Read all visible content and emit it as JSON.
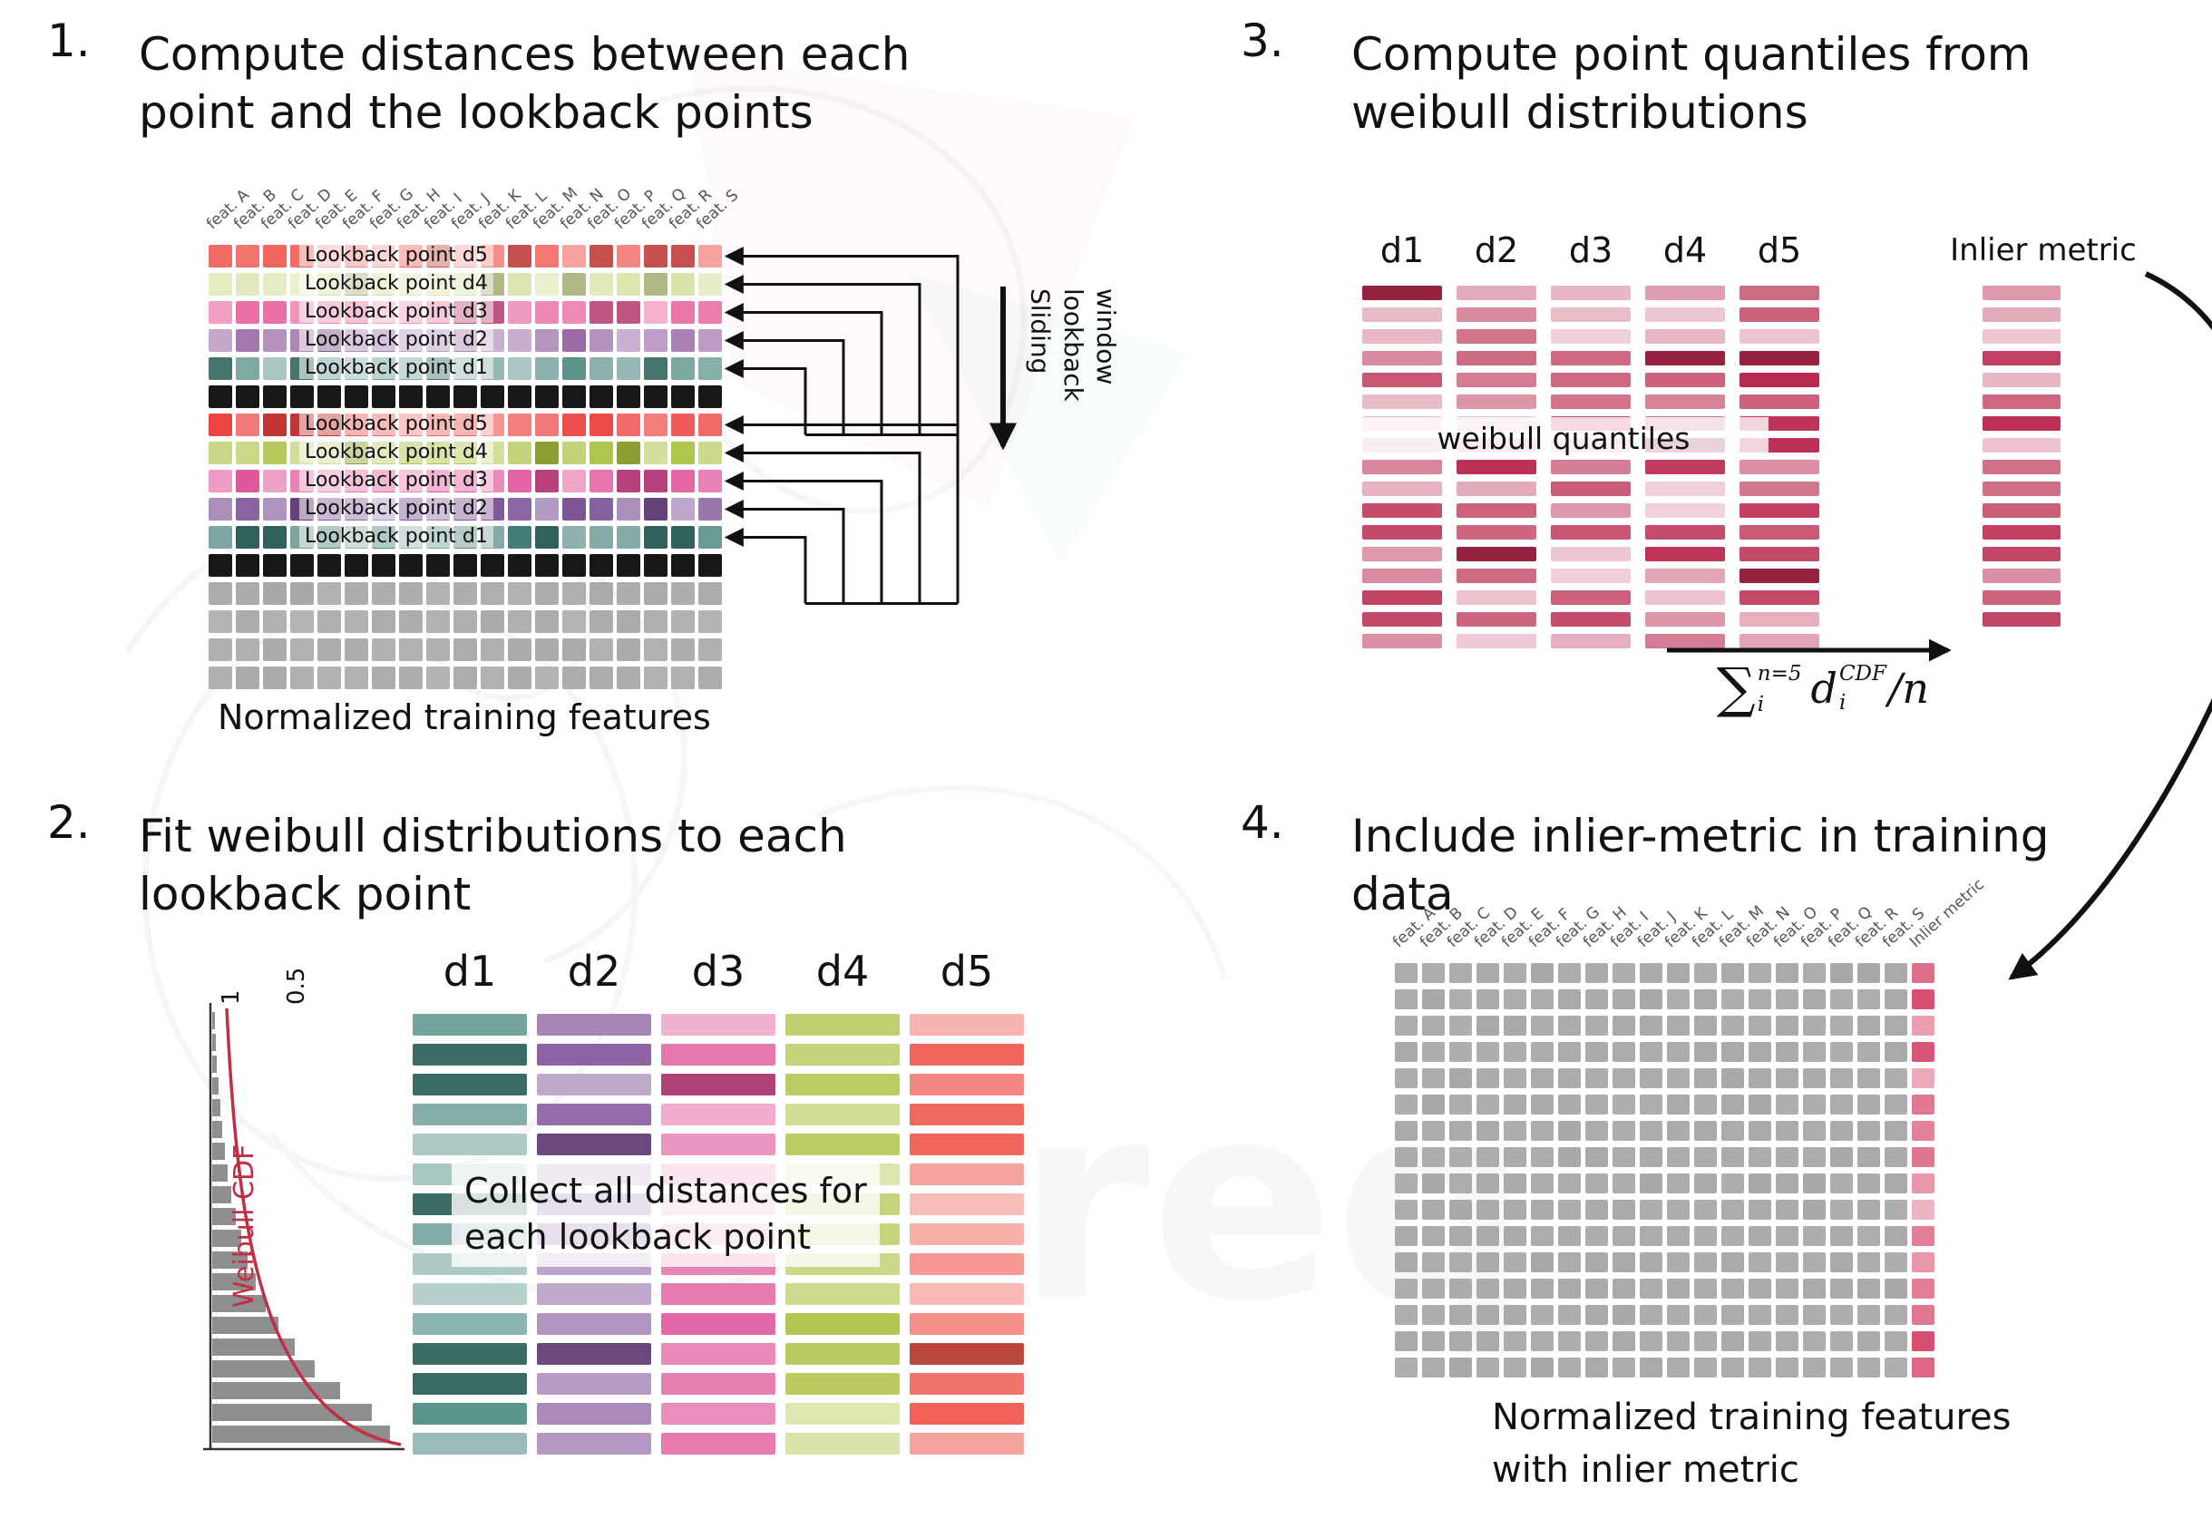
{
  "watermark": {
    "text": "req"
  },
  "panel1": {
    "number": "1.",
    "title": "Compute distances between each\npoint and the lookback points",
    "caption": "Normalized training features",
    "sliding_label": "Sliding\nlookback\nwindow",
    "features": [
      "feat. A",
      "feat. B",
      "feat. C",
      "feat. D",
      "feat. E",
      "feat. F",
      "feat. G",
      "feat. H",
      "feat. I",
      "feat. J",
      "feat. K",
      "feat. L",
      "feat. M",
      "feat. N",
      "feat. O",
      "feat. P",
      "feat. Q",
      "feat. R",
      "feat. S"
    ],
    "grid": {
      "cols": 19,
      "rows": [
        {
          "kind": "lookback",
          "label": "Lookback point d5",
          "color": "#f2635d"
        },
        {
          "kind": "lookback",
          "label": "Lookback point d4",
          "color": "#d9e0a2"
        },
        {
          "kind": "lookback",
          "label": "Lookback point d3",
          "color": "#e9689f"
        },
        {
          "kind": "lookback",
          "label": "Lookback point d2",
          "color": "#9a69a7"
        },
        {
          "kind": "lookback",
          "label": "Lookback point d1",
          "color": "#579089"
        },
        {
          "kind": "solid",
          "color": "#171717"
        },
        {
          "kind": "lookback",
          "label": "Lookback point d5",
          "color": "#ee4040"
        },
        {
          "kind": "lookback",
          "label": "Lookback point d4",
          "color": "#a9c240"
        },
        {
          "kind": "lookback",
          "label": "Lookback point d3",
          "color": "#e04f98"
        },
        {
          "kind": "lookback",
          "label": "Lookback point d2",
          "color": "#7b5095"
        },
        {
          "kind": "lookback",
          "label": "Lookback point d1",
          "color": "#3a776f"
        },
        {
          "kind": "solid",
          "color": "#171717"
        },
        {
          "kind": "solid",
          "color": "#a9a9a9",
          "vary": true
        },
        {
          "kind": "solid",
          "color": "#a9a9a9",
          "vary": true
        },
        {
          "kind": "solid",
          "color": "#a9a9a9",
          "vary": true
        },
        {
          "kind": "solid",
          "color": "#a9a9a9",
          "vary": true
        }
      ]
    }
  },
  "panel2": {
    "number": "2.",
    "title": "Fit weibull distributions to each\nlookback point",
    "overlay": "Collect all distances for\neach lookback point",
    "plot": {
      "ylabel": "Weibull CDF",
      "tick1": "1",
      "tick05": "0.5",
      "bar_values": [
        3,
        4,
        5,
        7,
        9,
        11,
        14,
        17,
        21,
        26,
        32,
        39,
        48,
        59,
        73,
        91,
        113,
        141,
        176,
        196
      ]
    },
    "bars_per_column": 15,
    "columns": [
      {
        "label": "d1",
        "color": "#4d8b83"
      },
      {
        "label": "d2",
        "color": "#8a5da0"
      },
      {
        "label": "d3",
        "color": "#e0569b"
      },
      {
        "label": "d4",
        "color": "#b6c653"
      },
      {
        "label": "d5",
        "color": "#f05a50"
      }
    ]
  },
  "panel3": {
    "number": "3.",
    "title": "Compute point quantiles from\nweibull distributions",
    "overlay": "weibull quantiles",
    "inlier_label": "Inlier metric",
    "columns": [
      "d1",
      "d2",
      "d3",
      "d4",
      "d5"
    ],
    "bar_color": "#bb2a50",
    "bars_per_column": 17,
    "inlier_bars": 16,
    "formula": {
      "sum": "∑",
      "sum_sup": "n=5",
      "sum_sub": "i",
      "var": "d",
      "var_sup": "CDF",
      "var_sub": "i",
      "tail": "/n"
    }
  },
  "panel4": {
    "number": "4.",
    "title": "Include inlier-metric in training\ndata",
    "caption": "Normalized training features\nwith inlier metric",
    "features": [
      "feat. A",
      "feat. B",
      "feat. C",
      "feat. D",
      "feat. E",
      "feat. F",
      "feat. G",
      "feat. H",
      "feat. I",
      "feat. J",
      "feat. K",
      "feat. L",
      "feat. M",
      "feat. N",
      "feat. O",
      "feat. P",
      "feat. Q",
      "feat. R",
      "feat. S"
    ],
    "inlier_header": "Inlier metric",
    "rows": 16,
    "gray": "#a9a9a9",
    "inlier_color": "#d6476a"
  }
}
